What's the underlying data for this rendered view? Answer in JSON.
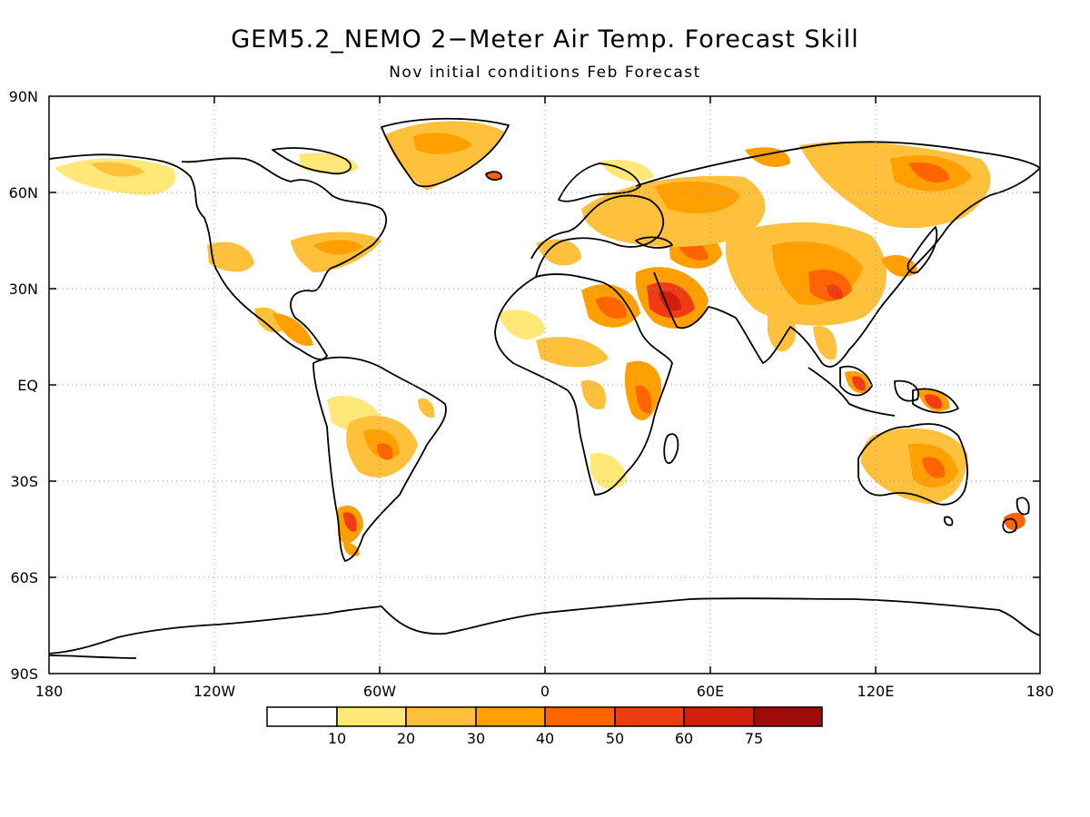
{
  "title": "GEM5.2_NEMO 2−Meter Air Temp. Forecast Skill",
  "subtitle": "Nov initial conditions  Feb Forecast",
  "lat_labels": [
    "90N",
    "60N",
    "30N",
    "EQ",
    "30S",
    "60S",
    "90S"
  ],
  "lon_labels": [
    "180",
    "120W",
    "60W",
    "0",
    "60E",
    "120E",
    "180"
  ],
  "colorbar": {
    "labels": [
      "10",
      "20",
      "30",
      "40",
      "50",
      "60",
      "75"
    ],
    "colors": [
      "#ffffff",
      "#ffe878",
      "#ffc03c",
      "#ffa000",
      "#ff6400",
      "#f03c14",
      "#d21e0a",
      "#a00a0a"
    ]
  },
  "map": {
    "projection": "equirectangular",
    "lon_range": [
      -180,
      180
    ],
    "lat_range": [
      -90,
      90
    ],
    "gridlines": "dotted",
    "coastline_color": "#000000"
  }
}
